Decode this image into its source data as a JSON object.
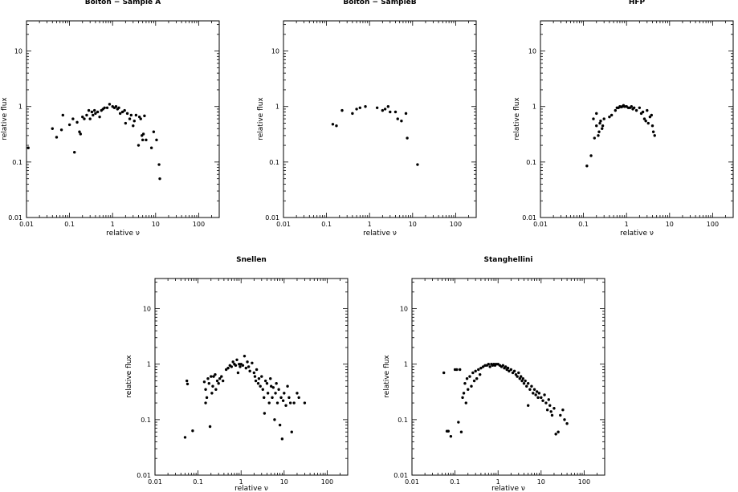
{
  "figure": {
    "background": "#ffffff",
    "marker_color": "#000000"
  },
  "chart_data": [
    {
      "type": "scatter",
      "title": "Bolton − Sample A",
      "xlabel": "relative ν",
      "ylabel": "relative flux",
      "xscale": "log",
      "yscale": "log",
      "xlim": [
        0.01,
        300
      ],
      "ylim": [
        0.01,
        35
      ],
      "xticks": [
        "0.01",
        "0.1",
        "1",
        "10",
        "100"
      ],
      "yticks": [
        "0.01",
        "0.1",
        "1",
        "10"
      ],
      "grid": false,
      "points": [
        [
          0.011,
          0.18
        ],
        [
          0.04,
          0.4
        ],
        [
          0.05,
          0.28
        ],
        [
          0.065,
          0.38
        ],
        [
          0.07,
          0.7
        ],
        [
          0.1,
          0.47
        ],
        [
          0.12,
          0.6
        ],
        [
          0.13,
          0.15
        ],
        [
          0.15,
          0.52
        ],
        [
          0.17,
          0.35
        ],
        [
          0.18,
          0.32
        ],
        [
          0.2,
          0.65
        ],
        [
          0.22,
          0.6
        ],
        [
          0.25,
          0.7
        ],
        [
          0.28,
          0.85
        ],
        [
          0.3,
          0.6
        ],
        [
          0.33,
          0.8
        ],
        [
          0.35,
          0.7
        ],
        [
          0.38,
          0.85
        ],
        [
          0.4,
          0.75
        ],
        [
          0.45,
          0.8
        ],
        [
          0.5,
          0.65
        ],
        [
          0.55,
          0.85
        ],
        [
          0.6,
          0.9
        ],
        [
          0.65,
          0.95
        ],
        [
          0.75,
          0.95
        ],
        [
          0.85,
          1.1
        ],
        [
          1.0,
          1.0
        ],
        [
          1.1,
          0.95
        ],
        [
          1.2,
          1.0
        ],
        [
          1.3,
          0.9
        ],
        [
          1.4,
          0.95
        ],
        [
          1.5,
          0.75
        ],
        [
          1.7,
          0.8
        ],
        [
          1.9,
          0.85
        ],
        [
          2.0,
          0.5
        ],
        [
          2.2,
          0.75
        ],
        [
          2.5,
          0.6
        ],
        [
          2.7,
          0.7
        ],
        [
          3.0,
          0.45
        ],
        [
          3.2,
          0.55
        ],
        [
          3.5,
          0.7
        ],
        [
          4.0,
          0.2
        ],
        [
          4.2,
          0.65
        ],
        [
          4.5,
          0.6
        ],
        [
          4.8,
          0.3
        ],
        [
          5.0,
          0.25
        ],
        [
          5.2,
          0.32
        ],
        [
          5.5,
          0.68
        ],
        [
          6.0,
          0.25
        ],
        [
          8.0,
          0.18
        ],
        [
          9.0,
          0.35
        ],
        [
          10.5,
          0.25
        ],
        [
          12.0,
          0.09
        ],
        [
          12.5,
          0.05
        ]
      ]
    },
    {
      "type": "scatter",
      "title": "Bolton − SampleB",
      "xlabel": "relative ν",
      "ylabel": "relative flux",
      "xscale": "log",
      "yscale": "log",
      "xlim": [
        0.01,
        300
      ],
      "ylim": [
        0.01,
        35
      ],
      "xticks": [
        "0.01",
        "0.1",
        "1",
        "10",
        "100"
      ],
      "yticks": [
        "0.01",
        "0.1",
        "1",
        "10"
      ],
      "grid": false,
      "points": [
        [
          0.14,
          0.48
        ],
        [
          0.17,
          0.45
        ],
        [
          0.23,
          0.85
        ],
        [
          0.4,
          0.75
        ],
        [
          0.5,
          0.9
        ],
        [
          0.6,
          0.95
        ],
        [
          0.8,
          1.0
        ],
        [
          1.5,
          0.95
        ],
        [
          2.0,
          0.85
        ],
        [
          2.3,
          0.9
        ],
        [
          2.7,
          1.0
        ],
        [
          3.0,
          0.8
        ],
        [
          4.0,
          0.8
        ],
        [
          4.5,
          0.6
        ],
        [
          5.5,
          0.55
        ],
        [
          7.0,
          0.75
        ],
        [
          7.5,
          0.27
        ],
        [
          13.0,
          0.09
        ]
      ]
    },
    {
      "type": "scatter",
      "title": "HFP",
      "xlabel": "relative ν",
      "ylabel": "relative flux",
      "xscale": "log",
      "yscale": "log",
      "xlim": [
        0.01,
        300
      ],
      "ylim": [
        0.01,
        35
      ],
      "xticks": [
        "0.01",
        "0.1",
        "1",
        "10",
        "100"
      ],
      "yticks": [
        "0.01",
        "0.1",
        "1",
        "10"
      ],
      "grid": false,
      "points": [
        [
          0.12,
          0.085
        ],
        [
          0.15,
          0.13
        ],
        [
          0.17,
          0.6
        ],
        [
          0.18,
          0.27
        ],
        [
          0.2,
          0.45
        ],
        [
          0.2,
          0.75
        ],
        [
          0.22,
          0.3
        ],
        [
          0.23,
          0.35
        ],
        [
          0.24,
          0.5
        ],
        [
          0.25,
          0.55
        ],
        [
          0.27,
          0.4
        ],
        [
          0.28,
          0.45
        ],
        [
          0.3,
          0.6
        ],
        [
          0.4,
          0.65
        ],
        [
          0.45,
          0.7
        ],
        [
          0.55,
          0.85
        ],
        [
          0.6,
          0.95
        ],
        [
          0.65,
          0.95
        ],
        [
          0.7,
          1.0
        ],
        [
          0.75,
          0.98
        ],
        [
          0.8,
          1.0
        ],
        [
          0.85,
          1.05
        ],
        [
          0.9,
          1.0
        ],
        [
          1.0,
          1.0
        ],
        [
          1.1,
          0.95
        ],
        [
          1.2,
          0.95
        ],
        [
          1.3,
          1.0
        ],
        [
          1.4,
          0.9
        ],
        [
          1.5,
          0.95
        ],
        [
          1.7,
          0.85
        ],
        [
          2.0,
          0.95
        ],
        [
          2.2,
          0.75
        ],
        [
          2.4,
          0.8
        ],
        [
          2.6,
          0.6
        ],
        [
          2.8,
          0.55
        ],
        [
          3.0,
          0.85
        ],
        [
          3.2,
          0.5
        ],
        [
          3.5,
          0.65
        ],
        [
          3.8,
          0.7
        ],
        [
          4.0,
          0.45
        ],
        [
          4.2,
          0.35
        ],
        [
          4.5,
          0.3
        ]
      ]
    },
    {
      "type": "scatter",
      "title": "Snellen",
      "xlabel": "relative ν",
      "ylabel": "relative flux",
      "xscale": "log",
      "yscale": "log",
      "xlim": [
        0.01,
        300
      ],
      "ylim": [
        0.01,
        35
      ],
      "xticks": [
        "0.01",
        "0.1",
        "1",
        "10",
        "100"
      ],
      "yticks": [
        "0.01",
        "0.1",
        "1",
        "10"
      ],
      "grid": false,
      "points": [
        [
          0.05,
          0.048
        ],
        [
          0.055,
          0.5
        ],
        [
          0.057,
          0.44
        ],
        [
          0.075,
          0.063
        ],
        [
          0.14,
          0.48
        ],
        [
          0.15,
          0.35
        ],
        [
          0.15,
          0.2
        ],
        [
          0.16,
          0.25
        ],
        [
          0.17,
          0.55
        ],
        [
          0.18,
          0.45
        ],
        [
          0.19,
          0.075
        ],
        [
          0.2,
          0.6
        ],
        [
          0.21,
          0.3
        ],
        [
          0.22,
          0.4
        ],
        [
          0.23,
          0.6
        ],
        [
          0.25,
          0.65
        ],
        [
          0.26,
          0.35
        ],
        [
          0.28,
          0.5
        ],
        [
          0.3,
          0.45
        ],
        [
          0.32,
          0.55
        ],
        [
          0.35,
          0.6
        ],
        [
          0.38,
          0.5
        ],
        [
          0.45,
          0.8
        ],
        [
          0.5,
          0.85
        ],
        [
          0.55,
          0.95
        ],
        [
          0.6,
          0.9
        ],
        [
          0.65,
          1.1
        ],
        [
          0.7,
          1.0
        ],
        [
          0.75,
          0.95
        ],
        [
          0.8,
          1.2
        ],
        [
          0.85,
          0.7
        ],
        [
          0.9,
          1.0
        ],
        [
          0.95,
          0.9
        ],
        [
          1.0,
          1.0
        ],
        [
          1.1,
          0.95
        ],
        [
          1.2,
          1.4
        ],
        [
          1.3,
          0.85
        ],
        [
          1.4,
          1.1
        ],
        [
          1.5,
          0.9
        ],
        [
          1.6,
          0.75
        ],
        [
          1.8,
          1.05
        ],
        [
          2.0,
          0.7
        ],
        [
          2.1,
          0.6
        ],
        [
          2.2,
          0.5
        ],
        [
          2.3,
          0.8
        ],
        [
          2.5,
          0.45
        ],
        [
          2.6,
          0.55
        ],
        [
          2.8,
          0.4
        ],
        [
          3.0,
          0.6
        ],
        [
          3.2,
          0.35
        ],
        [
          3.4,
          0.25
        ],
        [
          3.5,
          0.13
        ],
        [
          3.7,
          0.5
        ],
        [
          4.0,
          0.45
        ],
        [
          4.2,
          0.3
        ],
        [
          4.5,
          0.2
        ],
        [
          4.8,
          0.55
        ],
        [
          5.0,
          0.4
        ],
        [
          5.3,
          0.25
        ],
        [
          5.6,
          0.38
        ],
        [
          6.0,
          0.1
        ],
        [
          6.3,
          0.3
        ],
        [
          6.6,
          0.45
        ],
        [
          7.0,
          0.2
        ],
        [
          7.5,
          0.35
        ],
        [
          8.0,
          0.08
        ],
        [
          8.5,
          0.25
        ],
        [
          9.0,
          0.045
        ],
        [
          9.5,
          0.22
        ],
        [
          10.0,
          0.3
        ],
        [
          11.0,
          0.18
        ],
        [
          12.0,
          0.4
        ],
        [
          13.0,
          0.25
        ],
        [
          14.0,
          0.2
        ],
        [
          15.0,
          0.06
        ],
        [
          17.0,
          0.2
        ],
        [
          20.0,
          0.3
        ],
        [
          22.0,
          0.25
        ],
        [
          30.0,
          0.2
        ]
      ]
    },
    {
      "type": "scatter",
      "title": "Stanghellini",
      "xlabel": "relative ν",
      "ylabel": "relative flux",
      "xscale": "log",
      "yscale": "log",
      "xlim": [
        0.01,
        300
      ],
      "ylim": [
        0.01,
        35
      ],
      "xticks": [
        "0.01",
        "0.1",
        "1",
        "10",
        "100"
      ],
      "yticks": [
        "0.01",
        "0.1",
        "1",
        "10"
      ],
      "grid": false,
      "points": [
        [
          0.055,
          0.7
        ],
        [
          0.065,
          0.062
        ],
        [
          0.07,
          0.062
        ],
        [
          0.08,
          0.05
        ],
        [
          0.1,
          0.8
        ],
        [
          0.11,
          0.8
        ],
        [
          0.12,
          0.09
        ],
        [
          0.13,
          0.8
        ],
        [
          0.14,
          0.06
        ],
        [
          0.15,
          0.25
        ],
        [
          0.16,
          0.3
        ],
        [
          0.17,
          0.45
        ],
        [
          0.18,
          0.2
        ],
        [
          0.19,
          0.55
        ],
        [
          0.2,
          0.35
        ],
        [
          0.22,
          0.6
        ],
        [
          0.24,
          0.4
        ],
        [
          0.26,
          0.7
        ],
        [
          0.28,
          0.5
        ],
        [
          0.3,
          0.75
        ],
        [
          0.32,
          0.55
        ],
        [
          0.35,
          0.8
        ],
        [
          0.38,
          0.65
        ],
        [
          0.4,
          0.85
        ],
        [
          0.45,
          0.9
        ],
        [
          0.5,
          0.95
        ],
        [
          0.55,
          0.95
        ],
        [
          0.6,
          1.0
        ],
        [
          0.65,
          0.9
        ],
        [
          0.7,
          1.0
        ],
        [
          0.75,
          0.95
        ],
        [
          0.8,
          1.0
        ],
        [
          0.85,
          0.95
        ],
        [
          0.9,
          1.0
        ],
        [
          1.0,
          1.0
        ],
        [
          1.1,
          0.95
        ],
        [
          1.2,
          0.9
        ],
        [
          1.3,
          0.95
        ],
        [
          1.4,
          0.85
        ],
        [
          1.5,
          0.9
        ],
        [
          1.6,
          0.8
        ],
        [
          1.7,
          0.85
        ],
        [
          1.8,
          0.75
        ],
        [
          2.0,
          0.8
        ],
        [
          2.2,
          0.7
        ],
        [
          2.4,
          0.75
        ],
        [
          2.6,
          0.65
        ],
        [
          2.8,
          0.6
        ],
        [
          3.0,
          0.7
        ],
        [
          3.2,
          0.55
        ],
        [
          3.4,
          0.6
        ],
        [
          3.6,
          0.5
        ],
        [
          3.8,
          0.55
        ],
        [
          4.0,
          0.45
        ],
        [
          4.3,
          0.5
        ],
        [
          4.6,
          0.4
        ],
        [
          5.0,
          0.18
        ],
        [
          5.0,
          0.45
        ],
        [
          5.5,
          0.35
        ],
        [
          6.0,
          0.4
        ],
        [
          6.5,
          0.3
        ],
        [
          7.0,
          0.35
        ],
        [
          7.5,
          0.28
        ],
        [
          8.0,
          0.32
        ],
        [
          8.5,
          0.25
        ],
        [
          9.0,
          0.3
        ],
        [
          10.0,
          0.25
        ],
        [
          11.0,
          0.22
        ],
        [
          12.0,
          0.28
        ],
        [
          13.0,
          0.2
        ],
        [
          14.0,
          0.15
        ],
        [
          15.0,
          0.23
        ],
        [
          16.0,
          0.18
        ],
        [
          17.0,
          0.14
        ],
        [
          18.0,
          0.12
        ],
        [
          20.0,
          0.16
        ],
        [
          22.0,
          0.055
        ],
        [
          25.0,
          0.06
        ],
        [
          28.0,
          0.12
        ],
        [
          32.0,
          0.15
        ],
        [
          35.0,
          0.1
        ],
        [
          40.0,
          0.085
        ]
      ]
    }
  ]
}
